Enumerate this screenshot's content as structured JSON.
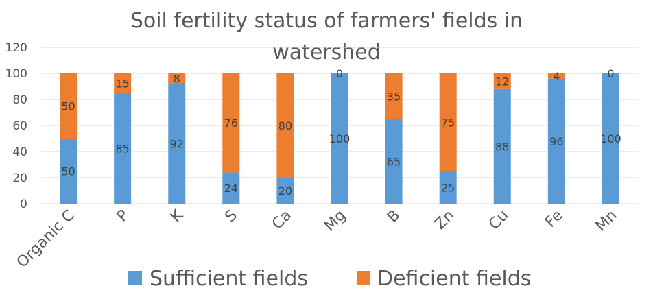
{
  "chart_data": {
    "type": "bar",
    "stacked": true,
    "title_line1": "Soil fertility status of farmers' fields in",
    "title_line2": "watershed",
    "categories": [
      "Organic C",
      "P",
      "K",
      "S",
      "Ca",
      "Mg",
      "B",
      "Zn",
      "Cu",
      "Fe",
      "Mn"
    ],
    "series": [
      {
        "name": "Sufficient fields",
        "color": "#5b9bd5",
        "values": [
          50,
          85,
          92,
          24,
          20,
          100,
          65,
          25,
          88,
          96,
          100
        ]
      },
      {
        "name": "Deficient fields",
        "color": "#ed7d31",
        "values": [
          50,
          15,
          8,
          76,
          80,
          0,
          35,
          75,
          12,
          4,
          0
        ]
      }
    ],
    "ylim": [
      0,
      120
    ],
    "yticks": [
      "0",
      "20",
      "40",
      "60",
      "80",
      "100",
      "120"
    ],
    "grid": true,
    "legend_position": "bottom",
    "gridline_color": "#d9d9d9"
  }
}
